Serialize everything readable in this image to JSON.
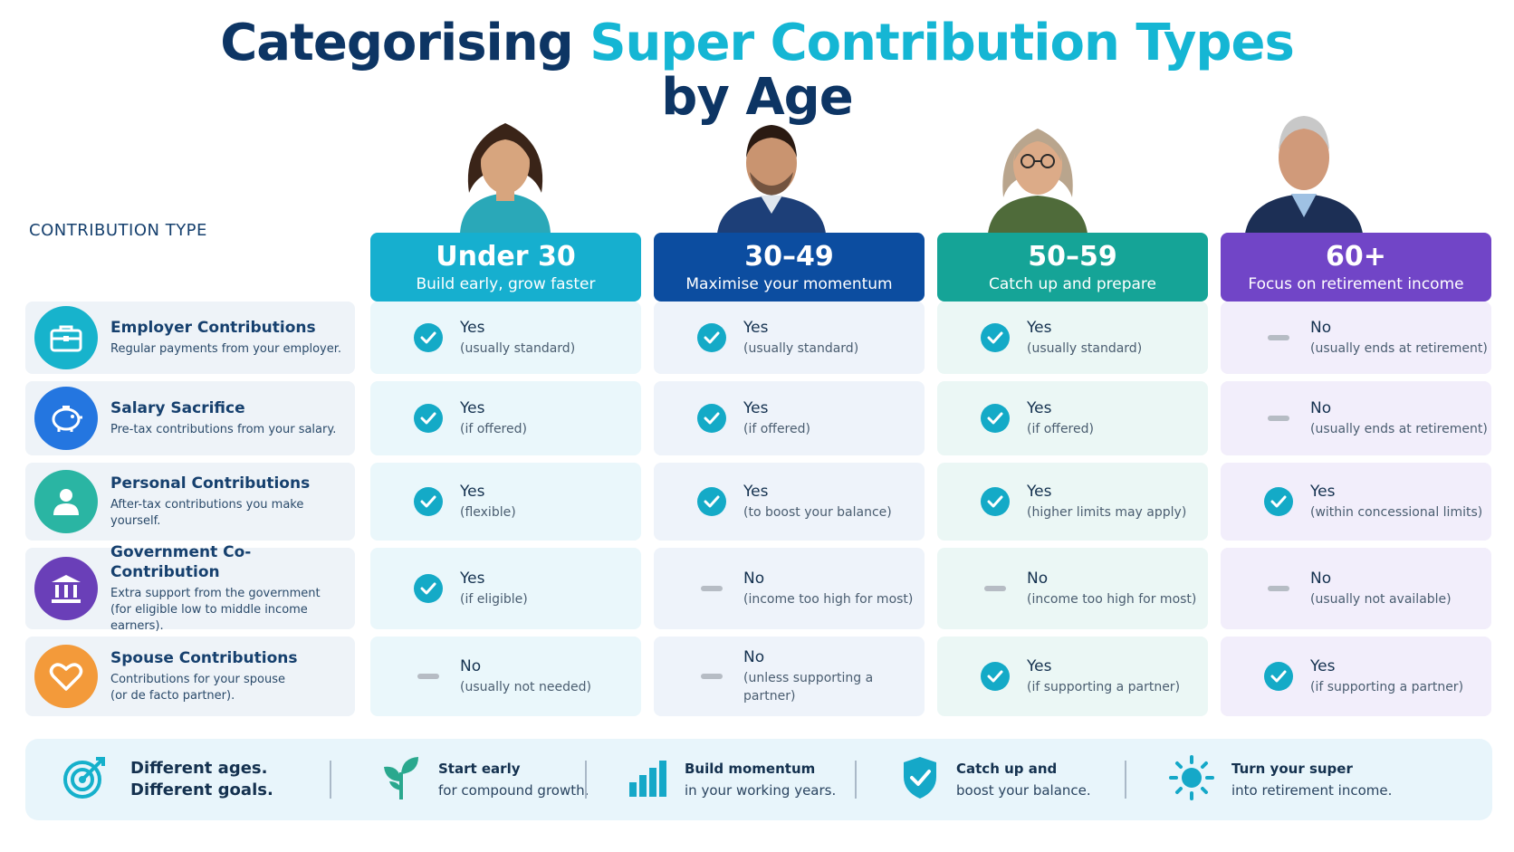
{
  "title": {
    "part1": "Categorising ",
    "accent": "Super Contribution Types",
    "part2": "by Age"
  },
  "contribution_type_label": "CONTRIBUTION TYPE",
  "age_groups": [
    {
      "age": "Under 30",
      "subtitle": "Build early, grow faster",
      "color": "#16afcf"
    },
    {
      "age": "30–49",
      "subtitle": "Maximise your momentum",
      "color": "#0c4da0"
    },
    {
      "age": "50–59",
      "subtitle": "Catch up and prepare",
      "color": "#15a497"
    },
    {
      "age": "60+",
      "subtitle": "Focus on retirement income",
      "color": "#7145c7"
    }
  ],
  "rows": [
    {
      "name": "Employer Contributions",
      "desc": "Regular payments from your employer.",
      "icon": "briefcase-icon",
      "color": "#17b3cc",
      "cells": [
        {
          "mark": "check",
          "value": "Yes",
          "note": "(usually standard)"
        },
        {
          "mark": "check",
          "value": "Yes",
          "note": "(usually standard)"
        },
        {
          "mark": "check",
          "value": "Yes",
          "note": "(usually standard)"
        },
        {
          "mark": "dash",
          "value": "No",
          "note": "(usually ends at retirement)"
        }
      ]
    },
    {
      "name": "Salary Sacrifice",
      "desc": "Pre-tax contributions from your salary.",
      "icon": "piggy-bank-icon",
      "color": "#2476e0",
      "cells": [
        {
          "mark": "check",
          "value": "Yes",
          "note": "(if offered)"
        },
        {
          "mark": "check",
          "value": "Yes",
          "note": "(if offered)"
        },
        {
          "mark": "check",
          "value": "Yes",
          "note": "(if offered)"
        },
        {
          "mark": "dash",
          "value": "No",
          "note": "(usually ends at retirement)"
        }
      ]
    },
    {
      "name": "Personal Contributions",
      "desc": "After-tax contributions you make yourself.",
      "icon": "person-icon",
      "color": "#2ab5a3",
      "cells": [
        {
          "mark": "check",
          "value": "Yes",
          "note": "(flexible)"
        },
        {
          "mark": "check",
          "value": "Yes",
          "note": "(to boost your balance)"
        },
        {
          "mark": "check",
          "value": "Yes",
          "note": "(higher limits may apply)"
        },
        {
          "mark": "check",
          "value": "Yes",
          "note": "(within concessional limits)"
        }
      ]
    },
    {
      "name": "Government Co-Contribution",
      "desc": "Extra support from the government",
      "desc2": "(for eligible low to middle income earners).",
      "icon": "bank-building-icon",
      "color": "#6a3fb8",
      "cells": [
        {
          "mark": "check",
          "value": "Yes",
          "note": "(if eligible)"
        },
        {
          "mark": "dash",
          "value": "No",
          "note": "(income too high for most)"
        },
        {
          "mark": "dash",
          "value": "No",
          "note": "(income too high for most)"
        },
        {
          "mark": "dash",
          "value": "No",
          "note": "(usually not available)"
        }
      ]
    },
    {
      "name": "Spouse Contributions",
      "desc": "Contributions for your spouse",
      "desc2": "(or de facto partner).",
      "icon": "heart-icon",
      "color": "#f39a3a",
      "cells": [
        {
          "mark": "dash",
          "value": "No",
          "note": "(usually not needed)"
        },
        {
          "mark": "dash",
          "value": "No",
          "note": "(unless supporting a partner)"
        },
        {
          "mark": "check",
          "value": "Yes",
          "note": "(if supporting a partner)"
        },
        {
          "mark": "check",
          "value": "Yes",
          "note": "(if supporting a partner)"
        }
      ]
    }
  ],
  "banner": {
    "intro": {
      "line1": "Different ages.",
      "line2": "Different goals.",
      "icon": "target-icon"
    },
    "items": [
      {
        "strong": "Start early",
        "rest": "for compound growth.",
        "icon": "sprout-icon"
      },
      {
        "strong": "Build momentum",
        "rest": "in your working years.",
        "icon": "bar-chart-icon"
      },
      {
        "strong": "Catch up and",
        "rest": "boost your balance.",
        "icon": "shield-check-icon"
      },
      {
        "strong": "Turn your super",
        "rest": "into retirement income.",
        "icon": "sun-icon"
      }
    ]
  }
}
